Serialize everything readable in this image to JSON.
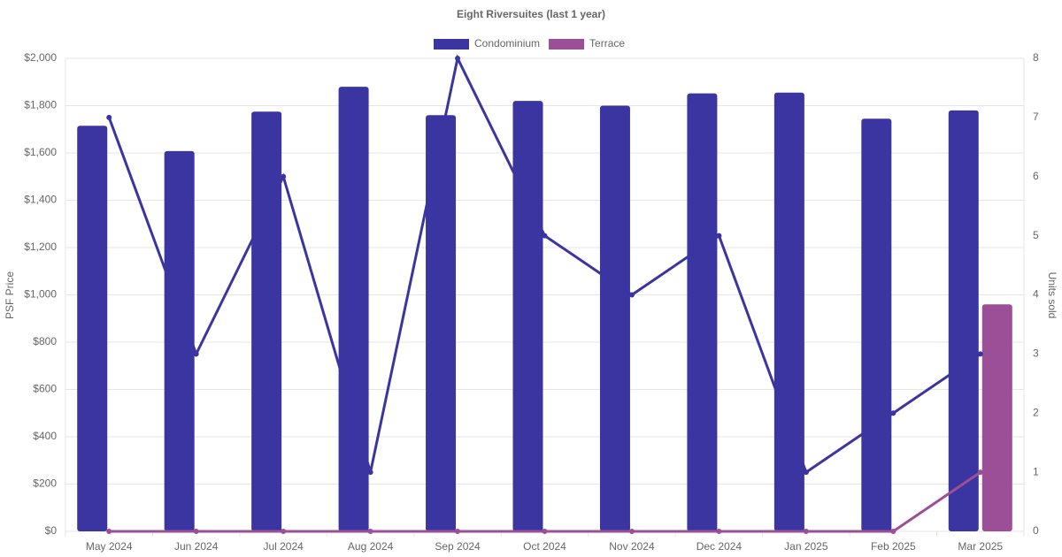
{
  "chart_data": {
    "type": "bar",
    "title": "Eight Riversuites (last 1 year)",
    "y_label": "PSF Price",
    "y2_label": "Units sold",
    "categories": [
      "May 2024",
      "Jun 2024",
      "Jul 2024",
      "Aug 2024",
      "Sep 2024",
      "Oct 2024",
      "Nov 2024",
      "Dec 2024",
      "Jan 2025",
      "Feb 2025",
      "Mar 2025"
    ],
    "series": [
      {
        "name": "Condominium",
        "color": "#3a35a0",
        "values": [
          1715,
          1608,
          1775,
          1880,
          1760,
          1820,
          1800,
          1852,
          1855,
          1745,
          1780
        ],
        "units": [
          7,
          3,
          6,
          1,
          8,
          5,
          4,
          5,
          1,
          2,
          3
        ]
      },
      {
        "name": "Terrace",
        "color": "#9b4f96",
        "values": [
          null,
          null,
          null,
          null,
          null,
          null,
          null,
          null,
          null,
          null,
          960
        ],
        "units": [
          0,
          0,
          0,
          0,
          0,
          0,
          0,
          0,
          0,
          0,
          1
        ]
      }
    ],
    "ylim": [
      0,
      2000
    ],
    "yticks": [
      {
        "value": 0,
        "label": "$0"
      },
      {
        "value": 200,
        "label": "$200"
      },
      {
        "value": 400,
        "label": "$400"
      },
      {
        "value": 600,
        "label": "$600"
      },
      {
        "value": 800,
        "label": "$800"
      },
      {
        "value": 1000,
        "label": "$1,000"
      },
      {
        "value": 1200,
        "label": "$1,200"
      },
      {
        "value": 1400,
        "label": "$1,400"
      },
      {
        "value": 1600,
        "label": "$1,600"
      },
      {
        "value": 1800,
        "label": "$1,800"
      },
      {
        "value": 2000,
        "label": "$2,000"
      }
    ],
    "y2lim": [
      0,
      8
    ],
    "y2ticks": [
      0,
      1,
      2,
      3,
      4,
      5,
      6,
      7,
      8
    ],
    "grid": true
  }
}
